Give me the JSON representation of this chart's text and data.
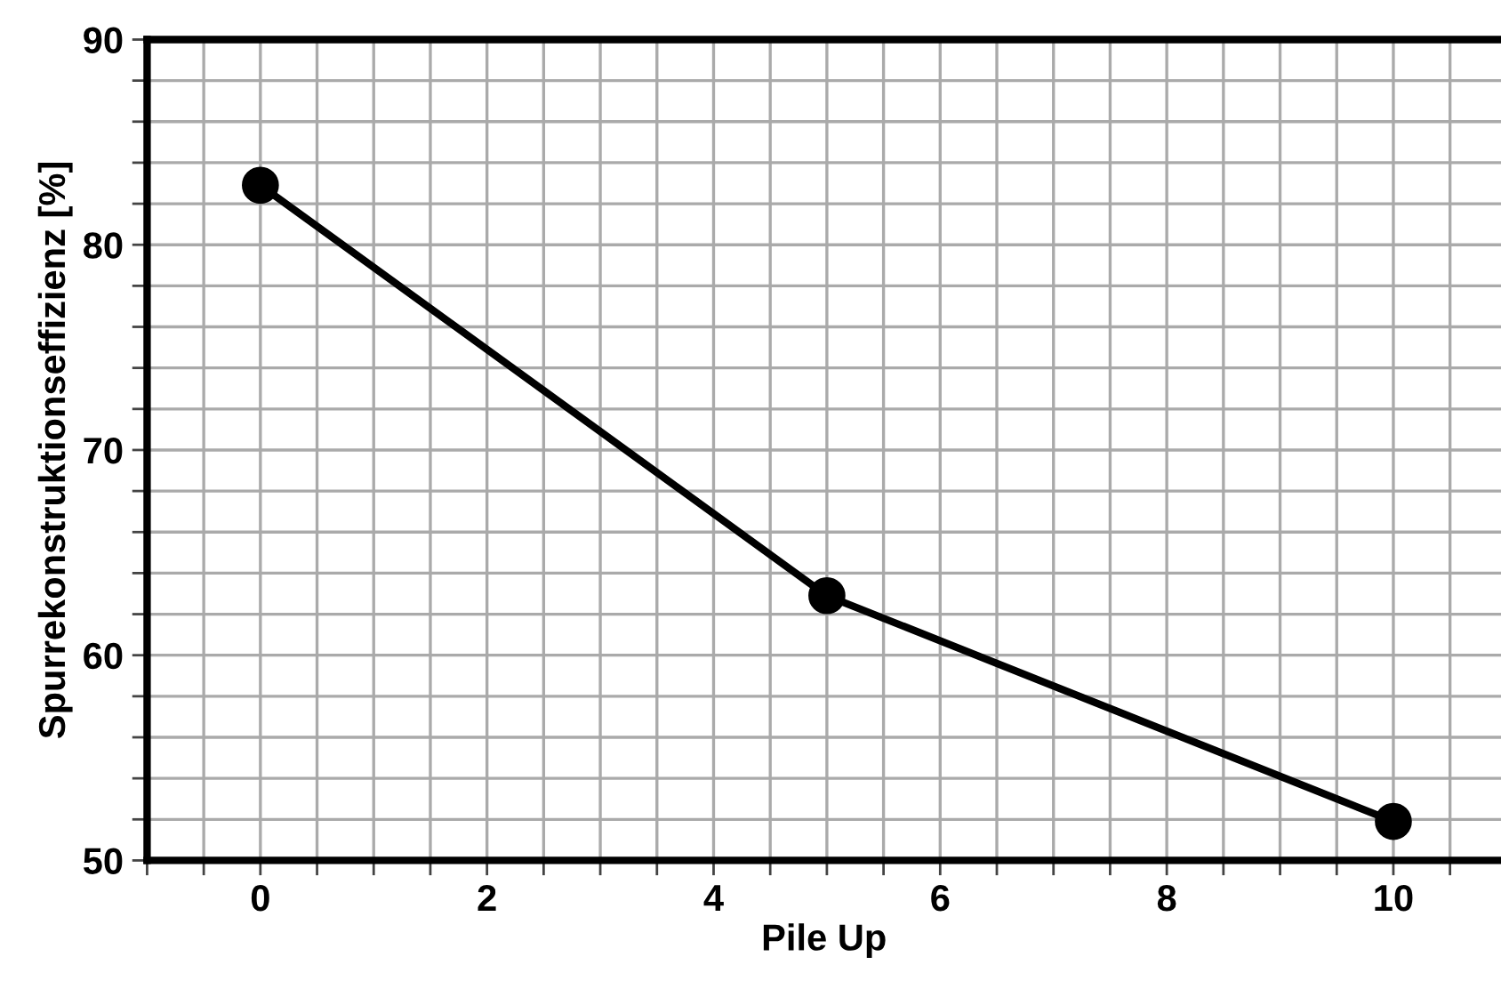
{
  "chart_data": {
    "type": "line",
    "xlabel": "Pile Up",
    "ylabel": "Spurrekonstruktionseffizienz [%]",
    "x": [
      0,
      5,
      10
    ],
    "series": [
      {
        "color": "#000000",
        "values": [
          82.9,
          62.9,
          51.9
        ]
      }
    ],
    "marker": "circle",
    "line_style": "solid",
    "grid": true,
    "xlim": [
      -1,
      10.95
    ],
    "ylim": [
      50,
      90
    ],
    "xticks": [
      {
        "value": -1,
        "label": null
      },
      {
        "value": -0.5,
        "label": null
      },
      0,
      {
        "value": 0.5,
        "label": null
      },
      {
        "value": 1,
        "label": null
      },
      {
        "value": 1.5,
        "label": null
      },
      2,
      {
        "value": 2.5,
        "label": null
      },
      {
        "value": 3,
        "label": null
      },
      {
        "value": 3.5,
        "label": null
      },
      4,
      {
        "value": 4.5,
        "label": null
      },
      {
        "value": 5,
        "label": null
      },
      {
        "value": 5.5,
        "label": null
      },
      6,
      {
        "value": 6.5,
        "label": null
      },
      {
        "value": 7,
        "label": null
      },
      {
        "value": 7.5,
        "label": null
      },
      8,
      {
        "value": 8.5,
        "label": null
      },
      {
        "value": 9,
        "label": null
      },
      {
        "value": 9.5,
        "label": null
      },
      10,
      {
        "value": 10.5,
        "label": null
      }
    ],
    "yticks": [
      50,
      {
        "value": 52,
        "label": null
      },
      {
        "value": 54,
        "label": null
      },
      {
        "value": 56,
        "label": null
      },
      {
        "value": 58,
        "label": null
      },
      60,
      {
        "value": 62,
        "label": null
      },
      {
        "value": 64,
        "label": null
      },
      {
        "value": 66,
        "label": null
      },
      {
        "value": 68,
        "label": null
      },
      70,
      {
        "value": 72,
        "label": null
      },
      {
        "value": 74,
        "label": null
      },
      {
        "value": 76,
        "label": null
      },
      {
        "value": 78,
        "label": null
      },
      80,
      {
        "value": 82,
        "label": null
      },
      {
        "value": 84,
        "label": null
      },
      {
        "value": 86,
        "label": null
      },
      {
        "value": 88,
        "label": null
      },
      90
    ]
  }
}
